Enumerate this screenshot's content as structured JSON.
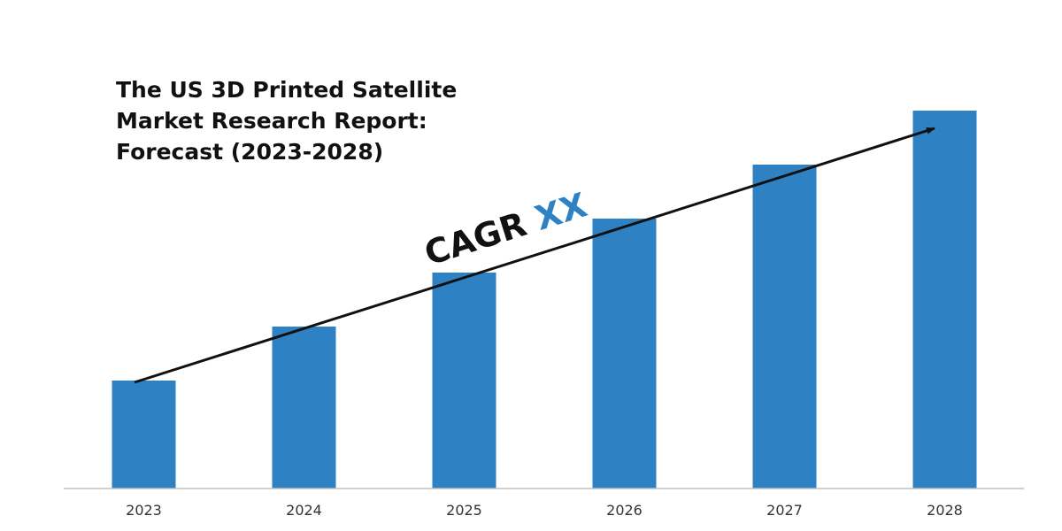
{
  "chart_data": {
    "type": "bar",
    "title_lines": [
      "The US 3D Printed Satellite",
      "Market Research Report:",
      "Forecast (2023-2028)"
    ],
    "categories": [
      "2023",
      "2024",
      "2025",
      "2026",
      "2027",
      "2028"
    ],
    "values": [
      2,
      3,
      4,
      5,
      6,
      7
    ],
    "ylim": [
      0,
      8
    ],
    "xlabel": "",
    "ylabel": "",
    "grid": false,
    "annotation": {
      "prefix": "CAGR",
      "value": "XX"
    }
  },
  "colors": {
    "bar": "#2E82C4",
    "axis": "#BFBFBF",
    "trend_arrow": "#111111",
    "cagr_text": "#111111",
    "cagr_value": "#2E82C4",
    "tick_label": "#333333"
  }
}
